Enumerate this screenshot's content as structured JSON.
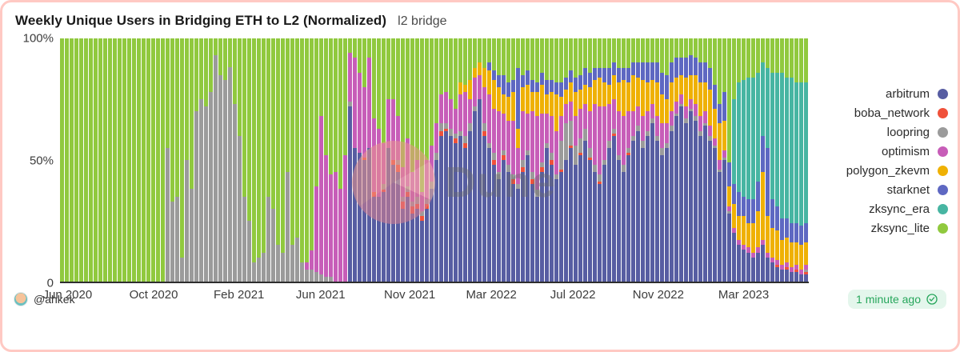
{
  "header": {
    "title": "Weekly Unique Users in Bridging ETH to L2 (Normalized)",
    "subtitle": "l2 bridge"
  },
  "watermark": {
    "text": "Dune"
  },
  "footer": {
    "author_handle": "@ahkek",
    "updated_badge": "1 minute ago"
  },
  "colors": {
    "card_border": "#ffc9c3",
    "badge_bg": "#e4f6ec",
    "badge_text": "#26a65b",
    "axis": "#2f2f2f"
  },
  "chart_data": {
    "type": "bar",
    "stacked": true,
    "normalized": true,
    "title": "Weekly Unique Users in Bridging ETH to L2 (Normalized)",
    "subtitle": "l2 bridge",
    "xlabel": "",
    "ylabel": "",
    "ylim": [
      0,
      100
    ],
    "grid": false,
    "legend_position": "right",
    "y_ticks": [
      {
        "label": "100%",
        "pos_pct": 0
      },
      {
        "label": "50%",
        "pos_pct": 50
      },
      {
        "label": "0",
        "pos_pct": 100
      }
    ],
    "x_ticks": [
      {
        "label": "Jun 2020",
        "pos_pct": 1.0
      },
      {
        "label": "Oct 2020",
        "pos_pct": 12.5
      },
      {
        "label": "Feb 2021",
        "pos_pct": 23.9
      },
      {
        "label": "Jun 2021",
        "pos_pct": 34.8
      },
      {
        "label": "Nov 2021",
        "pos_pct": 46.7
      },
      {
        "label": "Mar 2022",
        "pos_pct": 57.6
      },
      {
        "label": "Jul 2022",
        "pos_pct": 68.5
      },
      {
        "label": "Nov 2022",
        "pos_pct": 79.9
      },
      {
        "label": "Mar 2023",
        "pos_pct": 91.3
      }
    ],
    "series": [
      {
        "name": "arbitrum",
        "color": "#575da2"
      },
      {
        "name": "boba_network",
        "color": "#f0513a"
      },
      {
        "name": "loopring",
        "color": "#9b9b9b"
      },
      {
        "name": "optimism",
        "color": "#c75db8"
      },
      {
        "name": "polygon_zkevm",
        "color": "#efb104"
      },
      {
        "name": "starknet",
        "color": "#5e68c2"
      },
      {
        "name": "zksync_era",
        "color": "#47b5a2"
      },
      {
        "name": "zksync_lite",
        "color": "#90c93e"
      }
    ],
    "rows_series_order": [
      "arbitrum",
      "boba_network",
      "loopring",
      "optimism",
      "polygon_zkevm",
      "starknet",
      "zksync_era",
      "zksync_lite"
    ],
    "rows": [
      [
        0,
        0,
        0,
        0,
        0,
        0,
        0,
        100
      ],
      [
        0,
        0,
        0,
        0,
        0,
        0,
        0,
        100
      ],
      [
        0,
        0,
        0,
        0,
        0,
        0,
        0,
        100
      ],
      [
        0,
        0,
        0,
        0,
        0,
        0,
        0,
        100
      ],
      [
        0,
        0,
        0,
        0,
        0,
        0,
        0,
        100
      ],
      [
        0,
        0,
        0,
        0,
        0,
        0,
        0,
        100
      ],
      [
        0,
        0,
        0,
        0,
        0,
        0,
        0,
        100
      ],
      [
        0,
        0,
        0,
        0,
        0,
        0,
        0,
        100
      ],
      [
        0,
        0,
        0,
        0,
        0,
        0,
        0,
        100
      ],
      [
        0,
        0,
        0,
        0,
        0,
        0,
        0,
        100
      ],
      [
        0,
        0,
        0,
        0,
        0,
        0,
        0,
        100
      ],
      [
        0,
        0,
        0,
        0,
        0,
        0,
        0,
        100
      ],
      [
        0,
        0,
        0,
        0,
        0,
        0,
        0,
        100
      ],
      [
        0,
        0,
        0,
        0,
        0,
        0,
        0,
        100
      ],
      [
        0,
        0,
        0,
        0,
        0,
        0,
        0,
        100
      ],
      [
        0,
        0,
        0,
        0,
        0,
        0,
        0,
        100
      ],
      [
        0,
        0,
        0,
        0,
        0,
        0,
        0,
        100
      ],
      [
        0,
        0,
        0,
        0,
        0,
        0,
        0,
        100
      ],
      [
        0,
        0,
        0,
        0,
        0,
        0,
        0,
        100
      ],
      [
        0,
        0,
        0,
        0,
        0,
        0,
        0,
        100
      ],
      [
        0,
        0,
        0,
        0,
        0,
        0,
        0,
        100
      ],
      [
        0,
        0,
        0,
        0,
        0,
        0,
        0,
        100
      ],
      [
        0,
        0,
        55,
        0,
        0,
        0,
        0,
        45
      ],
      [
        0,
        0,
        33,
        0,
        0,
        0,
        0,
        67
      ],
      [
        0,
        0,
        35,
        0,
        0,
        0,
        0,
        65
      ],
      [
        0,
        0,
        10,
        0,
        0,
        0,
        0,
        90
      ],
      [
        0,
        0,
        50,
        0,
        0,
        0,
        0,
        50
      ],
      [
        0,
        0,
        38,
        0,
        0,
        0,
        0,
        62
      ],
      [
        0,
        0,
        70,
        0,
        0,
        0,
        0,
        30
      ],
      [
        0,
        0,
        75,
        0,
        0,
        0,
        0,
        25
      ],
      [
        0,
        0,
        72,
        0,
        0,
        0,
        0,
        28
      ],
      [
        0,
        0,
        78,
        0,
        0,
        0,
        0,
        22
      ],
      [
        0,
        0,
        93,
        0,
        0,
        0,
        0,
        7
      ],
      [
        0,
        0,
        85,
        0,
        0,
        0,
        0,
        15
      ],
      [
        0,
        0,
        83,
        0,
        0,
        0,
        0,
        17
      ],
      [
        0,
        0,
        88,
        0,
        0,
        0,
        0,
        12
      ],
      [
        0,
        0,
        73,
        0,
        0,
        0,
        0,
        27
      ],
      [
        0,
        0,
        60,
        0,
        0,
        0,
        0,
        40
      ],
      [
        0,
        0,
        35,
        0,
        0,
        0,
        0,
        65
      ],
      [
        0,
        0,
        25,
        0,
        0,
        0,
        0,
        75
      ],
      [
        0,
        0,
        8,
        0,
        0,
        0,
        0,
        92
      ],
      [
        0,
        0,
        10,
        0,
        0,
        0,
        0,
        90
      ],
      [
        0,
        0,
        12,
        0,
        0,
        0,
        0,
        88
      ],
      [
        0,
        0,
        35,
        0,
        0,
        0,
        0,
        65
      ],
      [
        0,
        0,
        30,
        0,
        0,
        0,
        0,
        70
      ],
      [
        0,
        0,
        15,
        0,
        0,
        0,
        0,
        85
      ],
      [
        0,
        0,
        12,
        0,
        0,
        0,
        0,
        88
      ],
      [
        0,
        0,
        45,
        0,
        0,
        0,
        0,
        55
      ],
      [
        0,
        0,
        15,
        0,
        0,
        0,
        0,
        85
      ],
      [
        0,
        0,
        18,
        0,
        0,
        0,
        0,
        82
      ],
      [
        0,
        0,
        8,
        0,
        0,
        0,
        0,
        92
      ],
      [
        0,
        0,
        5,
        3,
        0,
        0,
        0,
        92
      ],
      [
        0,
        0,
        5,
        8,
        0,
        0,
        0,
        87
      ],
      [
        0,
        0,
        4,
        35,
        0,
        0,
        0,
        61
      ],
      [
        0,
        0,
        3,
        65,
        0,
        0,
        0,
        32
      ],
      [
        0,
        0,
        2,
        50,
        0,
        0,
        0,
        48
      ],
      [
        0,
        0,
        2,
        42,
        0,
        0,
        0,
        56
      ],
      [
        0,
        0,
        0,
        45,
        0,
        0,
        0,
        55
      ],
      [
        0,
        0,
        0,
        38,
        0,
        0,
        0,
        62
      ],
      [
        0,
        0,
        0,
        52,
        0,
        0,
        0,
        48
      ],
      [
        72,
        0,
        2,
        20,
        0,
        0,
        0,
        6
      ],
      [
        55,
        0,
        0,
        37,
        0,
        0,
        0,
        8
      ],
      [
        53,
        0,
        0,
        33,
        0,
        0,
        0,
        14
      ],
      [
        50,
        1,
        0,
        29,
        0,
        0,
        0,
        20
      ],
      [
        55,
        0,
        0,
        37,
        0,
        0,
        0,
        8
      ],
      [
        35,
        2,
        0,
        30,
        0,
        0,
        0,
        33
      ],
      [
        35,
        0,
        0,
        28,
        0,
        0,
        0,
        37
      ],
      [
        37,
        1,
        2,
        17,
        0,
        0,
        0,
        43
      ],
      [
        55,
        0,
        0,
        20,
        0,
        0,
        0,
        25
      ],
      [
        48,
        2,
        0,
        25,
        0,
        0,
        0,
        25
      ],
      [
        45,
        3,
        2,
        18,
        0,
        0,
        0,
        32
      ],
      [
        30,
        3,
        2,
        12,
        0,
        0,
        0,
        53
      ],
      [
        35,
        2,
        2,
        20,
        0,
        0,
        0,
        41
      ],
      [
        28,
        3,
        2,
        12,
        0,
        0,
        0,
        55
      ],
      [
        30,
        2,
        3,
        15,
        0,
        0,
        0,
        50
      ],
      [
        25,
        2,
        2,
        8,
        0,
        0,
        0,
        63
      ],
      [
        30,
        2,
        2,
        16,
        0,
        0,
        0,
        50
      ],
      [
        38,
        0,
        3,
        15,
        0,
        0,
        0,
        44
      ],
      [
        50,
        0,
        3,
        12,
        0,
        0,
        0,
        35
      ],
      [
        60,
        2,
        3,
        12,
        0,
        0,
        0,
        23
      ],
      [
        62,
        1,
        2,
        13,
        0,
        0,
        0,
        22
      ],
      [
        60,
        0,
        3,
        12,
        0,
        0,
        0,
        25
      ],
      [
        57,
        2,
        2,
        10,
        0,
        0,
        0,
        29
      ],
      [
        60,
        0,
        2,
        15,
        5,
        0,
        0,
        18
      ],
      [
        55,
        2,
        3,
        18,
        3,
        0,
        0,
        19
      ],
      [
        62,
        0,
        3,
        10,
        8,
        0,
        0,
        17
      ],
      [
        70,
        0,
        2,
        12,
        4,
        0,
        0,
        12
      ],
      [
        75,
        0,
        0,
        10,
        5,
        0,
        0,
        10
      ],
      [
        60,
        2,
        3,
        15,
        8,
        0,
        0,
        12
      ],
      [
        55,
        0,
        2,
        20,
        10,
        3,
        0,
        10
      ],
      [
        48,
        2,
        3,
        18,
        12,
        4,
        0,
        13
      ],
      [
        42,
        0,
        3,
        25,
        10,
        5,
        0,
        15
      ],
      [
        50,
        2,
        2,
        15,
        8,
        8,
        0,
        15
      ],
      [
        45,
        0,
        3,
        18,
        10,
        6,
        0,
        18
      ],
      [
        40,
        2,
        2,
        22,
        12,
        5,
        0,
        17
      ],
      [
        38,
        0,
        2,
        15,
        8,
        25,
        0,
        12
      ],
      [
        45,
        2,
        3,
        20,
        10,
        5,
        0,
        15
      ],
      [
        52,
        0,
        2,
        15,
        12,
        6,
        0,
        13
      ],
      [
        40,
        2,
        3,
        25,
        8,
        5,
        0,
        17
      ],
      [
        35,
        0,
        3,
        30,
        10,
        4,
        0,
        18
      ],
      [
        45,
        2,
        2,
        20,
        12,
        5,
        0,
        14
      ],
      [
        55,
        0,
        2,
        12,
        8,
        6,
        0,
        17
      ],
      [
        48,
        2,
        3,
        15,
        10,
        5,
        0,
        17
      ],
      [
        42,
        0,
        2,
        18,
        15,
        5,
        0,
        18
      ],
      [
        45,
        1,
        12,
        10,
        8,
        6,
        0,
        18
      ],
      [
        50,
        0,
        15,
        8,
        6,
        5,
        0,
        16
      ],
      [
        55,
        1,
        10,
        8,
        8,
        5,
        0,
        13
      ],
      [
        48,
        0,
        8,
        12,
        10,
        6,
        0,
        16
      ],
      [
        52,
        1,
        6,
        12,
        8,
        6,
        0,
        15
      ],
      [
        58,
        0,
        5,
        10,
        8,
        7,
        0,
        12
      ],
      [
        50,
        1,
        4,
        15,
        10,
        6,
        0,
        14
      ],
      [
        45,
        0,
        3,
        25,
        10,
        5,
        0,
        12
      ],
      [
        40,
        1,
        3,
        28,
        12,
        4,
        0,
        12
      ],
      [
        48,
        0,
        2,
        22,
        10,
        6,
        0,
        12
      ],
      [
        55,
        0,
        3,
        15,
        8,
        7,
        0,
        12
      ],
      [
        60,
        1,
        2,
        12,
        10,
        5,
        0,
        10
      ],
      [
        50,
        0,
        2,
        18,
        12,
        6,
        0,
        12
      ],
      [
        45,
        0,
        3,
        20,
        15,
        5,
        0,
        12
      ],
      [
        52,
        1,
        2,
        15,
        12,
        6,
        0,
        12
      ],
      [
        58,
        0,
        2,
        10,
        15,
        5,
        0,
        10
      ],
      [
        62,
        0,
        2,
        8,
        12,
        6,
        0,
        10
      ],
      [
        55,
        0,
        3,
        10,
        15,
        7,
        0,
        10
      ],
      [
        60,
        0,
        2,
        8,
        12,
        8,
        0,
        10
      ],
      [
        65,
        0,
        2,
        6,
        10,
        7,
        0,
        10
      ],
      [
        58,
        0,
        2,
        8,
        14,
        8,
        0,
        10
      ],
      [
        52,
        0,
        3,
        10,
        12,
        9,
        0,
        14
      ],
      [
        55,
        0,
        2,
        8,
        10,
        10,
        0,
        15
      ],
      [
        62,
        0,
        2,
        6,
        12,
        8,
        0,
        10
      ],
      [
        68,
        0,
        1,
        5,
        10,
        8,
        0,
        8
      ],
      [
        72,
        0,
        1,
        4,
        8,
        7,
        0,
        8
      ],
      [
        65,
        0,
        2,
        5,
        12,
        8,
        0,
        8
      ],
      [
        70,
        0,
        1,
        4,
        10,
        8,
        0,
        7
      ],
      [
        66,
        0,
        2,
        5,
        12,
        7,
        0,
        8
      ],
      [
        60,
        0,
        2,
        6,
        14,
        8,
        0,
        10
      ],
      [
        64,
        0,
        1,
        5,
        12,
        8,
        0,
        10
      ],
      [
        58,
        0,
        2,
        4,
        15,
        9,
        0,
        12
      ],
      [
        55,
        0,
        1,
        3,
        12,
        10,
        0,
        19
      ],
      [
        45,
        0,
        1,
        4,
        15,
        8,
        0,
        27
      ],
      [
        50,
        0,
        1,
        3,
        12,
        12,
        0,
        22
      ],
      [
        28,
        0,
        1,
        2,
        8,
        10,
        0,
        51
      ],
      [
        20,
        0,
        0,
        2,
        10,
        8,
        35,
        25
      ],
      [
        15,
        0,
        0,
        2,
        10,
        10,
        45,
        18
      ],
      [
        13,
        0,
        0,
        2,
        12,
        8,
        48,
        17
      ],
      [
        12,
        0,
        0,
        2,
        10,
        10,
        50,
        16
      ],
      [
        10,
        0,
        0,
        2,
        12,
        10,
        50,
        16
      ],
      [
        12,
        0,
        0,
        2,
        15,
        12,
        45,
        14
      ],
      [
        15,
        0,
        0,
        2,
        28,
        15,
        30,
        10
      ],
      [
        10,
        0,
        0,
        2,
        15,
        28,
        33,
        12
      ],
      [
        8,
        0,
        0,
        2,
        12,
        12,
        52,
        14
      ],
      [
        6,
        1,
        0,
        2,
        12,
        10,
        55,
        14
      ],
      [
        5,
        0,
        0,
        2,
        10,
        9,
        60,
        14
      ],
      [
        5,
        1,
        0,
        2,
        10,
        8,
        58,
        16
      ],
      [
        4,
        0,
        0,
        2,
        10,
        8,
        60,
        16
      ],
      [
        4,
        1,
        0,
        2,
        9,
        8,
        58,
        18
      ],
      [
        3,
        0,
        0,
        2,
        10,
        8,
        59,
        18
      ],
      [
        3,
        1,
        1,
        2,
        9,
        8,
        58,
        18
      ]
    ]
  }
}
